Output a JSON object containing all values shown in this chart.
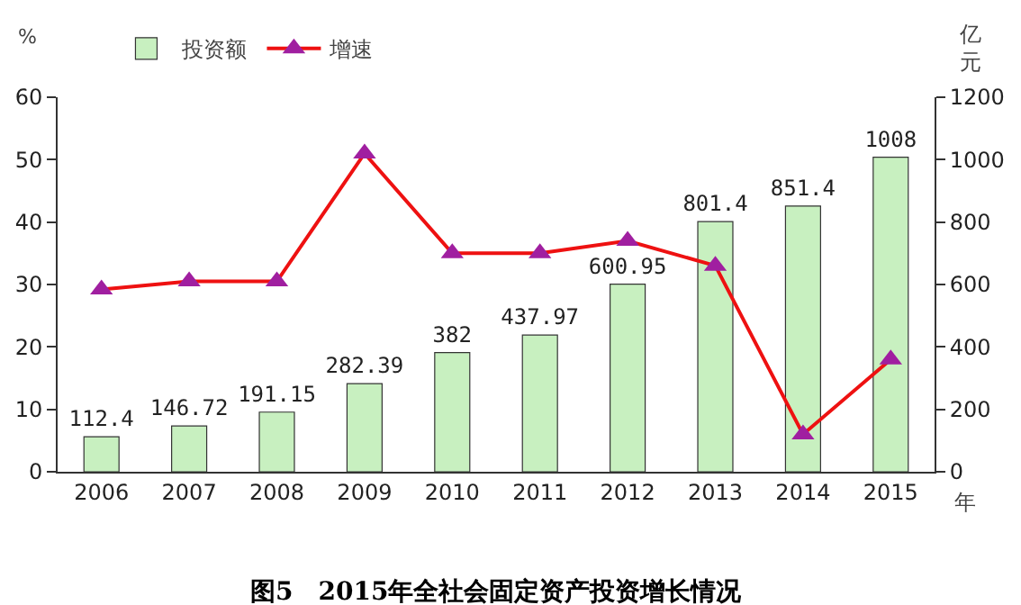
{
  "chart_data": {
    "type": "bar",
    "title": "图5　2015年全社会固定资产投资增长情况",
    "xlabel": "年",
    "ylabel": "%",
    "y2label": "亿元",
    "categories": [
      "2006",
      "2007",
      "2008",
      "2009",
      "2010",
      "2011",
      "2012",
      "2013",
      "2014",
      "2015"
    ],
    "series": [
      {
        "name": "投资额",
        "axis": "y2",
        "color": "#c8f0c0",
        "values": [
          112.4,
          146.72,
          191.15,
          282.39,
          382,
          437.97,
          600.95,
          801.4,
          851.4,
          1008
        ],
        "value_labels": [
          "112.4",
          "146.72",
          "191.15",
          "282.39",
          "382",
          "437.97",
          "600.95",
          "801.4",
          "851.4",
          "1008"
        ]
      },
      {
        "name": "增速",
        "type": "line",
        "color": "#ee1111",
        "colors": [
          "#a01fa0",
          "#a01fa0",
          "#a01fa0",
          "#a01fa0",
          "#a01fa0",
          "#a01fa0",
          "#a01fa0",
          "#a01fa0",
          "#a01fa0",
          "#a01fa0"
        ],
        "marker": "triangle",
        "values": [
          29.2,
          30.5,
          30.5,
          51,
          35,
          35,
          37,
          33,
          6,
          18
        ]
      }
    ],
    "ylim": [
      0,
      60
    ],
    "yticks": [
      0,
      10,
      20,
      30,
      40,
      50,
      60
    ],
    "y2lim": [
      0,
      1200
    ],
    "y2ticks": [
      0,
      200,
      400,
      600,
      800,
      1000,
      1200
    ],
    "grid": false,
    "legend": "top left"
  }
}
